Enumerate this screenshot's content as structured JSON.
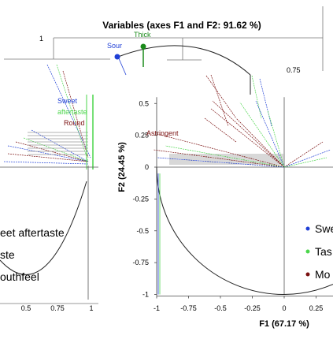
{
  "chart_data": {
    "type": "scatter",
    "title": "Variables (axes F1 and F2: 91.62 %)",
    "xlabel": "F1 (67.17 %)",
    "ylabel": "F2 (24.45 %)",
    "xlim": [
      -1,
      0.25
    ],
    "ylim": [
      -1,
      0.5
    ],
    "x_ticks": [
      "-1",
      "-0.75",
      "-0.5",
      "-0.25",
      "0",
      "0.25"
    ],
    "x_tick_values": [
      -1,
      -0.75,
      -0.5,
      -0.25,
      0,
      0.25
    ],
    "y_ticks": [
      "0.5",
      "0.25",
      "0",
      "-0.25",
      "-0.5",
      "-0.75",
      "-1"
    ],
    "y_tick_values": [
      0.5,
      0.25,
      0,
      -0.25,
      -0.5,
      -0.75,
      -1
    ],
    "series": [
      {
        "name": "Sweet",
        "color": "#1f3fd6"
      },
      {
        "name": "Taste",
        "color": "#4bd64b"
      },
      {
        "name": "Mouthfeel",
        "color": "#7a1010"
      }
    ],
    "legend_visible_text": [
      "Swe",
      "Tas",
      "Mo"
    ],
    "legend_position": "right",
    "variables": [
      {
        "label": "Astringent",
        "series": "Mouthfeel",
        "x": -1.0,
        "y": 0.28
      }
    ],
    "background_chart": {
      "tick_labels_top": [
        "1"
      ],
      "tick_labels_right": [
        "0.75"
      ],
      "x_ticks": [
        "0.5",
        "0.75",
        "1"
      ],
      "points": [
        {
          "label": "Sour",
          "color": "#1f3fd6"
        },
        {
          "label": "Thick",
          "color": "#1a8a1a"
        }
      ],
      "overlapping_labels": [
        "Sweet",
        "aftertaste",
        "Round"
      ],
      "legend_entries": [
        "eet aftertaste",
        "ste",
        "outhfeel"
      ]
    },
    "grid": false
  }
}
